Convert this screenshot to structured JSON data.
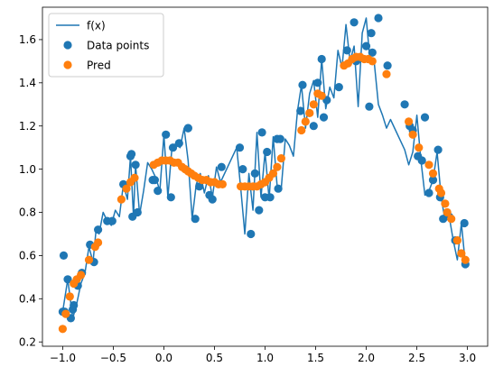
{
  "chart_data": {
    "type": "scatter",
    "title": "",
    "xlabel": "",
    "ylabel": "",
    "xlim": [
      -1.2,
      3.2
    ],
    "ylim": [
      0.18,
      1.75
    ],
    "xticks": [
      -1.0,
      -0.5,
      0.0,
      0.5,
      1.0,
      1.5,
      2.0,
      2.5,
      3.0
    ],
    "yticks": [
      0.2,
      0.4,
      0.6,
      0.8,
      1.0,
      1.2,
      1.4,
      1.6
    ],
    "xtick_labels": [
      "−1.0",
      "−0.5",
      "0.0",
      "0.5",
      "1.0",
      "1.5",
      "2.0",
      "2.5",
      "3.0"
    ],
    "ytick_labels": [
      "0.2",
      "0.4",
      "0.6",
      "0.8",
      "1.0",
      "1.2",
      "1.4",
      "1.6"
    ],
    "grid": false,
    "legend_position": "top-left",
    "colors": {
      "line": "#1f77b4",
      "data": "#1f77b4",
      "pred": "#ff7f0e"
    },
    "series": [
      {
        "name": "f(x)",
        "kind": "line",
        "x": [
          -1.0,
          -0.95,
          -0.9,
          -0.86,
          -0.82,
          -0.78,
          -0.74,
          -0.7,
          -0.67,
          -0.64,
          -0.6,
          -0.56,
          -0.52,
          -0.48,
          -0.44,
          -0.4,
          -0.36,
          -0.33,
          -0.3,
          -0.28,
          -0.24,
          -0.2,
          -0.16,
          -0.12,
          -0.08,
          -0.04,
          0.0,
          0.04,
          0.08,
          0.12,
          0.16,
          0.2,
          0.24,
          0.28,
          0.32,
          0.36,
          0.4,
          0.44,
          0.48,
          0.52,
          0.56,
          0.72,
          0.76,
          0.8,
          0.84,
          0.88,
          0.92,
          0.96,
          1.0,
          1.04,
          1.08,
          1.12,
          1.16,
          1.2,
          1.24,
          1.28,
          1.32,
          1.36,
          1.4,
          1.44,
          1.48,
          1.52,
          1.56,
          1.6,
          1.64,
          1.68,
          1.72,
          1.76,
          1.8,
          1.84,
          1.88,
          1.92,
          1.96,
          2.0,
          2.04,
          2.08,
          2.12,
          2.16,
          2.2,
          2.24,
          2.38,
          2.42,
          2.46,
          2.5,
          2.54,
          2.58,
          2.62,
          2.66,
          2.7,
          2.74,
          2.78,
          2.82,
          2.86,
          2.9,
          2.94,
          2.98
        ],
        "y": [
          0.34,
          0.49,
          0.31,
          0.38,
          0.47,
          0.52,
          0.64,
          0.57,
          0.72,
          0.7,
          0.8,
          0.76,
          0.74,
          0.81,
          0.78,
          0.93,
          0.86,
          1.06,
          0.78,
          1.02,
          0.79,
          0.9,
          1.03,
          1.0,
          0.96,
          0.9,
          1.16,
          0.87,
          1.1,
          1.12,
          1.1,
          1.19,
          1.04,
          0.77,
          0.93,
          0.98,
          0.89,
          0.97,
          0.87,
          1.01,
          0.94,
          1.1,
          0.91,
          0.7,
          0.98,
          0.81,
          1.17,
          0.87,
          1.08,
          0.86,
          1.15,
          0.92,
          0.91,
          1.14,
          1.11,
          1.06,
          1.27,
          1.39,
          1.19,
          1.35,
          1.41,
          1.24,
          1.51,
          1.28,
          1.38,
          1.33,
          1.55,
          1.47,
          1.67,
          1.5,
          1.57,
          1.29,
          1.63,
          1.7,
          1.49,
          1.49,
          1.3,
          1.25,
          1.19,
          1.23,
          1.09,
          1.02,
          1.08,
          1.25,
          1.04,
          0.88,
          0.9,
          0.95,
          1.08,
          0.87,
          0.76,
          0.78,
          0.67,
          0.58,
          0.75,
          0.56
        ]
      },
      {
        "name": "Data points",
        "kind": "scatter",
        "x": [
          -1.0,
          -0.99,
          -0.98,
          -0.95,
          -0.92,
          -0.9,
          -0.89,
          -0.85,
          -0.81,
          -0.73,
          -0.69,
          -0.65,
          -0.56,
          -0.51,
          -0.4,
          -0.33,
          -0.32,
          -0.31,
          -0.28,
          -0.26,
          -0.11,
          -0.09,
          -0.06,
          0.02,
          0.07,
          0.09,
          0.15,
          0.24,
          0.24,
          0.31,
          0.35,
          0.45,
          0.48,
          0.57,
          0.75,
          0.78,
          0.86,
          0.9,
          0.94,
          0.97,
          1.0,
          1.02,
          1.05,
          1.12,
          1.13,
          1.15,
          1.35,
          1.37,
          1.48,
          1.52,
          1.56,
          1.58,
          1.61,
          1.73,
          1.81,
          1.88,
          1.9,
          2.0,
          2.03,
          2.05,
          2.06,
          2.12,
          2.21,
          2.38,
          2.43,
          2.46,
          2.51,
          2.55,
          2.58,
          2.62,
          2.66,
          2.71,
          2.73,
          2.76,
          2.82,
          2.88,
          2.97,
          2.98
        ],
        "y": [
          0.34,
          0.6,
          0.34,
          0.49,
          0.31,
          0.35,
          0.37,
          0.46,
          0.52,
          0.65,
          0.57,
          0.72,
          0.76,
          0.76,
          0.93,
          1.06,
          1.07,
          0.78,
          1.02,
          0.8,
          0.95,
          0.95,
          0.9,
          1.16,
          0.87,
          1.1,
          1.12,
          1.19,
          1.19,
          0.77,
          0.92,
          0.88,
          0.86,
          1.01,
          1.1,
          1.0,
          0.7,
          0.98,
          0.81,
          1.17,
          0.87,
          1.08,
          0.87,
          1.14,
          0.91,
          1.14,
          1.27,
          1.39,
          1.2,
          1.4,
          1.51,
          1.24,
          1.32,
          1.38,
          1.55,
          1.68,
          1.5,
          1.57,
          1.29,
          1.63,
          1.54,
          1.7,
          1.48,
          1.3,
          1.2,
          1.18,
          1.06,
          1.04,
          1.24,
          0.89,
          0.95,
          1.09,
          0.87,
          0.77,
          0.78,
          0.67,
          0.75,
          0.56
        ]
      },
      {
        "name": "Pred",
        "kind": "scatter",
        "x": [
          -1.0,
          -0.97,
          -0.93,
          -0.89,
          -0.86,
          -0.82,
          -0.74,
          -0.68,
          -0.65,
          -0.42,
          -0.37,
          -0.33,
          -0.29,
          -0.1,
          -0.06,
          -0.02,
          0.02,
          0.06,
          0.1,
          0.14,
          0.18,
          0.21,
          0.24,
          0.27,
          0.3,
          0.34,
          0.38,
          0.42,
          0.46,
          0.5,
          0.54,
          0.58,
          0.76,
          0.8,
          0.84,
          0.88,
          0.92,
          0.96,
          1.0,
          1.04,
          1.08,
          1.12,
          1.16,
          1.36,
          1.4,
          1.44,
          1.48,
          1.52,
          1.56,
          1.78,
          1.82,
          1.86,
          1.9,
          1.94,
          1.98,
          2.02,
          2.06,
          2.2,
          2.42,
          2.46,
          2.52,
          2.62,
          2.66,
          2.72,
          2.74,
          2.78,
          2.8,
          2.84,
          2.9,
          2.94,
          2.98
        ],
        "y": [
          0.26,
          0.33,
          0.41,
          0.47,
          0.49,
          0.51,
          0.58,
          0.64,
          0.66,
          0.86,
          0.91,
          0.94,
          0.96,
          1.02,
          1.03,
          1.04,
          1.04,
          1.04,
          1.03,
          1.03,
          1.01,
          1.0,
          0.99,
          0.98,
          0.97,
          0.96,
          0.95,
          0.95,
          0.94,
          0.94,
          0.93,
          0.93,
          0.92,
          0.92,
          0.92,
          0.92,
          0.92,
          0.93,
          0.94,
          0.96,
          0.98,
          1.01,
          1.05,
          1.18,
          1.22,
          1.26,
          1.3,
          1.35,
          1.34,
          1.48,
          1.49,
          1.51,
          1.52,
          1.52,
          1.51,
          1.51,
          1.5,
          1.44,
          1.22,
          1.16,
          1.1,
          1.02,
          0.98,
          0.91,
          0.89,
          0.84,
          0.8,
          0.77,
          0.67,
          0.61,
          0.58
        ]
      }
    ]
  }
}
